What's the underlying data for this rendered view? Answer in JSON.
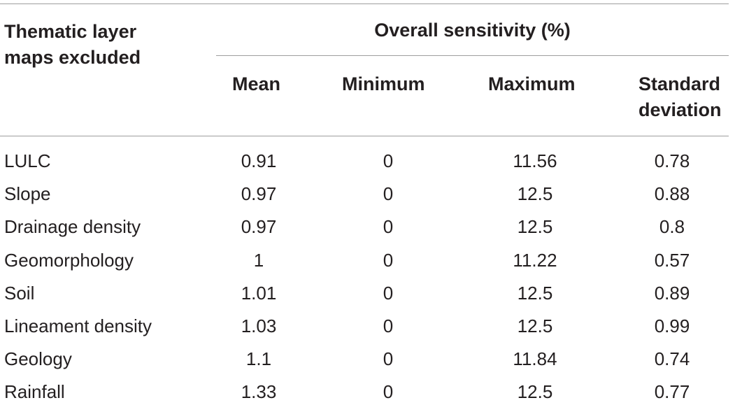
{
  "table": {
    "row_header_label": [
      "Thematic layer",
      "maps excluded"
    ],
    "group_header": "Overall sensitivity (%)",
    "columns": [
      {
        "label": [
          "Mean"
        ]
      },
      {
        "label": [
          "Minimum"
        ]
      },
      {
        "label": [
          "Maximum"
        ]
      },
      {
        "label": [
          "Standard",
          "deviation"
        ]
      }
    ],
    "rows": [
      {
        "label": "LULC",
        "values": [
          "0.91",
          "0",
          "11.56",
          "0.78"
        ]
      },
      {
        "label": "Slope",
        "values": [
          "0.97",
          "0",
          "12.5",
          "0.88"
        ]
      },
      {
        "label": "Drainage density",
        "values": [
          "0.97",
          "0",
          "12.5",
          "0.8"
        ]
      },
      {
        "label": "Geomorphology",
        "values": [
          "1",
          "0",
          "11.22",
          "0.57"
        ]
      },
      {
        "label": "Soil",
        "values": [
          "1.01",
          "0",
          "12.5",
          "0.89"
        ]
      },
      {
        "label": "Lineament density",
        "values": [
          "1.03",
          "0",
          "12.5",
          "0.99"
        ]
      },
      {
        "label": "Geology",
        "values": [
          "1.1",
          "0",
          "11.84",
          "0.74"
        ]
      },
      {
        "label": "Rainfall",
        "values": [
          "1.33",
          "0",
          "12.5",
          "0.77"
        ]
      }
    ]
  }
}
